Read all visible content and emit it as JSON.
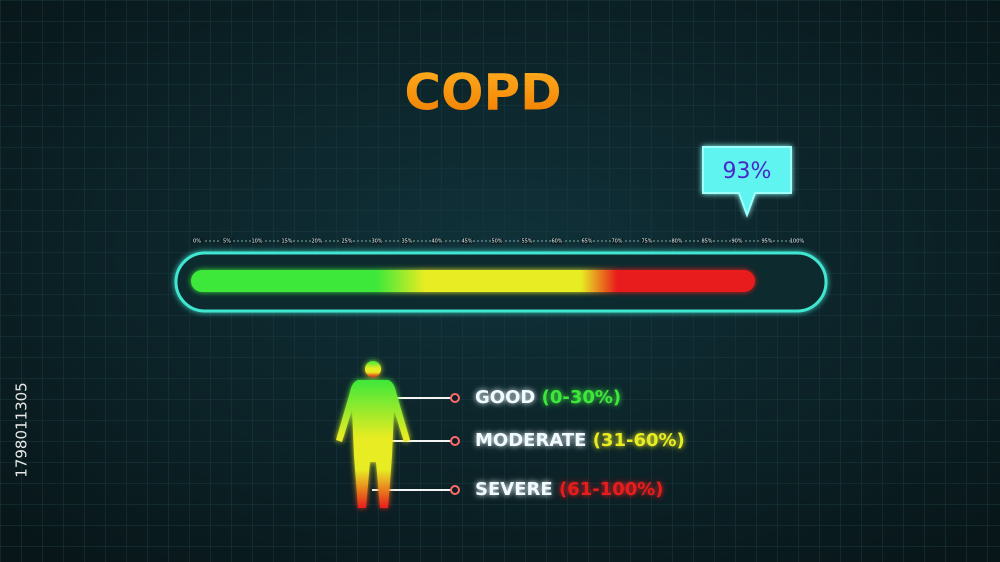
{
  "chart_data": {
    "type": "progress",
    "title": "COPD",
    "value": 93,
    "value_label": "93%",
    "xlim": [
      0,
      100
    ],
    "xticks": [
      {
        "value": 0,
        "label": "0%"
      },
      {
        "value": 5,
        "label": "5%"
      },
      {
        "value": 10,
        "label": "10%"
      },
      {
        "value": 15,
        "label": "15%"
      },
      {
        "value": 20,
        "label": "20%"
      },
      {
        "value": 25,
        "label": "25%"
      },
      {
        "value": 30,
        "label": "30%"
      },
      {
        "value": 35,
        "label": "35%"
      },
      {
        "value": 40,
        "label": "40%"
      },
      {
        "value": 45,
        "label": "45%"
      },
      {
        "value": 50,
        "label": "50%"
      },
      {
        "value": 55,
        "label": "55%"
      },
      {
        "value": 60,
        "label": "60%"
      },
      {
        "value": 65,
        "label": "65%"
      },
      {
        "value": 70,
        "label": "70%"
      },
      {
        "value": 75,
        "label": "75%"
      },
      {
        "value": 80,
        "label": "80%"
      },
      {
        "value": 85,
        "label": "85%"
      },
      {
        "value": 90,
        "label": "90%"
      },
      {
        "value": 95,
        "label": "95%"
      },
      {
        "value": 100,
        "label": "100%"
      }
    ],
    "legend": [
      {
        "name": "GOOD",
        "range": "(0-30%)",
        "color": "#3ee83a"
      },
      {
        "name": "MODERATE",
        "range": "(31-60%)",
        "color": "#e8ec22"
      },
      {
        "name": "SEVERE",
        "range": "(61-100%)",
        "color": "#e81c1c"
      }
    ]
  },
  "watermark_id": "1798011305"
}
